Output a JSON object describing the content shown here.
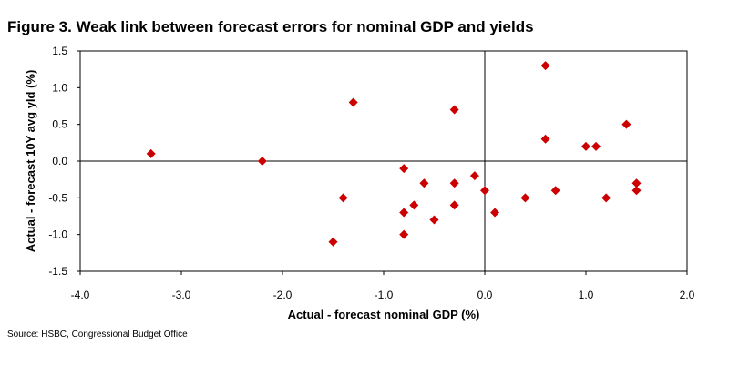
{
  "title": "Figure  3.  Weak link between forecast errors for nominal  GDP  and yields",
  "source": "Source: HSBC, Congressional Budget Office",
  "chart_data": {
    "type": "scatter",
    "title": "Figure  3.  Weak link between forecast errors for nominal  GDP  and yields",
    "xlabel": "Actual - forecast nominal GDP (%)",
    "ylabel": "Actual - forecast 10Y avg yld (%)",
    "xlim": [
      -4.0,
      2.0
    ],
    "ylim": [
      -1.5,
      1.5
    ],
    "x_ticks": [
      "-4.0",
      "-3.0",
      "-2.0",
      "-1.0",
      "0.0",
      "1.0",
      "2.0"
    ],
    "y_ticks": [
      "1.5",
      "1.0",
      "0.5",
      "0.0",
      "-0.5",
      "-1.0",
      "-1.5"
    ],
    "grid": false,
    "marker_color": "#cc0000",
    "marker": "diamond",
    "points": [
      {
        "x": -3.3,
        "y": 0.1
      },
      {
        "x": -2.2,
        "y": 0.0
      },
      {
        "x": -1.5,
        "y": -1.1
      },
      {
        "x": -1.4,
        "y": -0.5
      },
      {
        "x": -1.3,
        "y": 0.8
      },
      {
        "x": -0.8,
        "y": -0.1
      },
      {
        "x": -0.8,
        "y": -0.7
      },
      {
        "x": -0.8,
        "y": -1.0
      },
      {
        "x": -0.7,
        "y": -0.6
      },
      {
        "x": -0.6,
        "y": -0.3
      },
      {
        "x": -0.5,
        "y": -0.8
      },
      {
        "x": -0.3,
        "y": 0.7
      },
      {
        "x": -0.3,
        "y": -0.3
      },
      {
        "x": -0.3,
        "y": -0.6
      },
      {
        "x": -0.1,
        "y": -0.2
      },
      {
        "x": 0.0,
        "y": -0.4
      },
      {
        "x": 0.1,
        "y": -0.7
      },
      {
        "x": 0.4,
        "y": -0.5
      },
      {
        "x": 0.6,
        "y": 1.3
      },
      {
        "x": 0.6,
        "y": 0.3
      },
      {
        "x": 0.7,
        "y": -0.4
      },
      {
        "x": 1.0,
        "y": 0.2
      },
      {
        "x": 1.1,
        "y": 0.2
      },
      {
        "x": 1.2,
        "y": -0.5
      },
      {
        "x": 1.4,
        "y": 0.5
      },
      {
        "x": 1.5,
        "y": -0.3
      },
      {
        "x": 1.5,
        "y": -0.4
      }
    ]
  }
}
